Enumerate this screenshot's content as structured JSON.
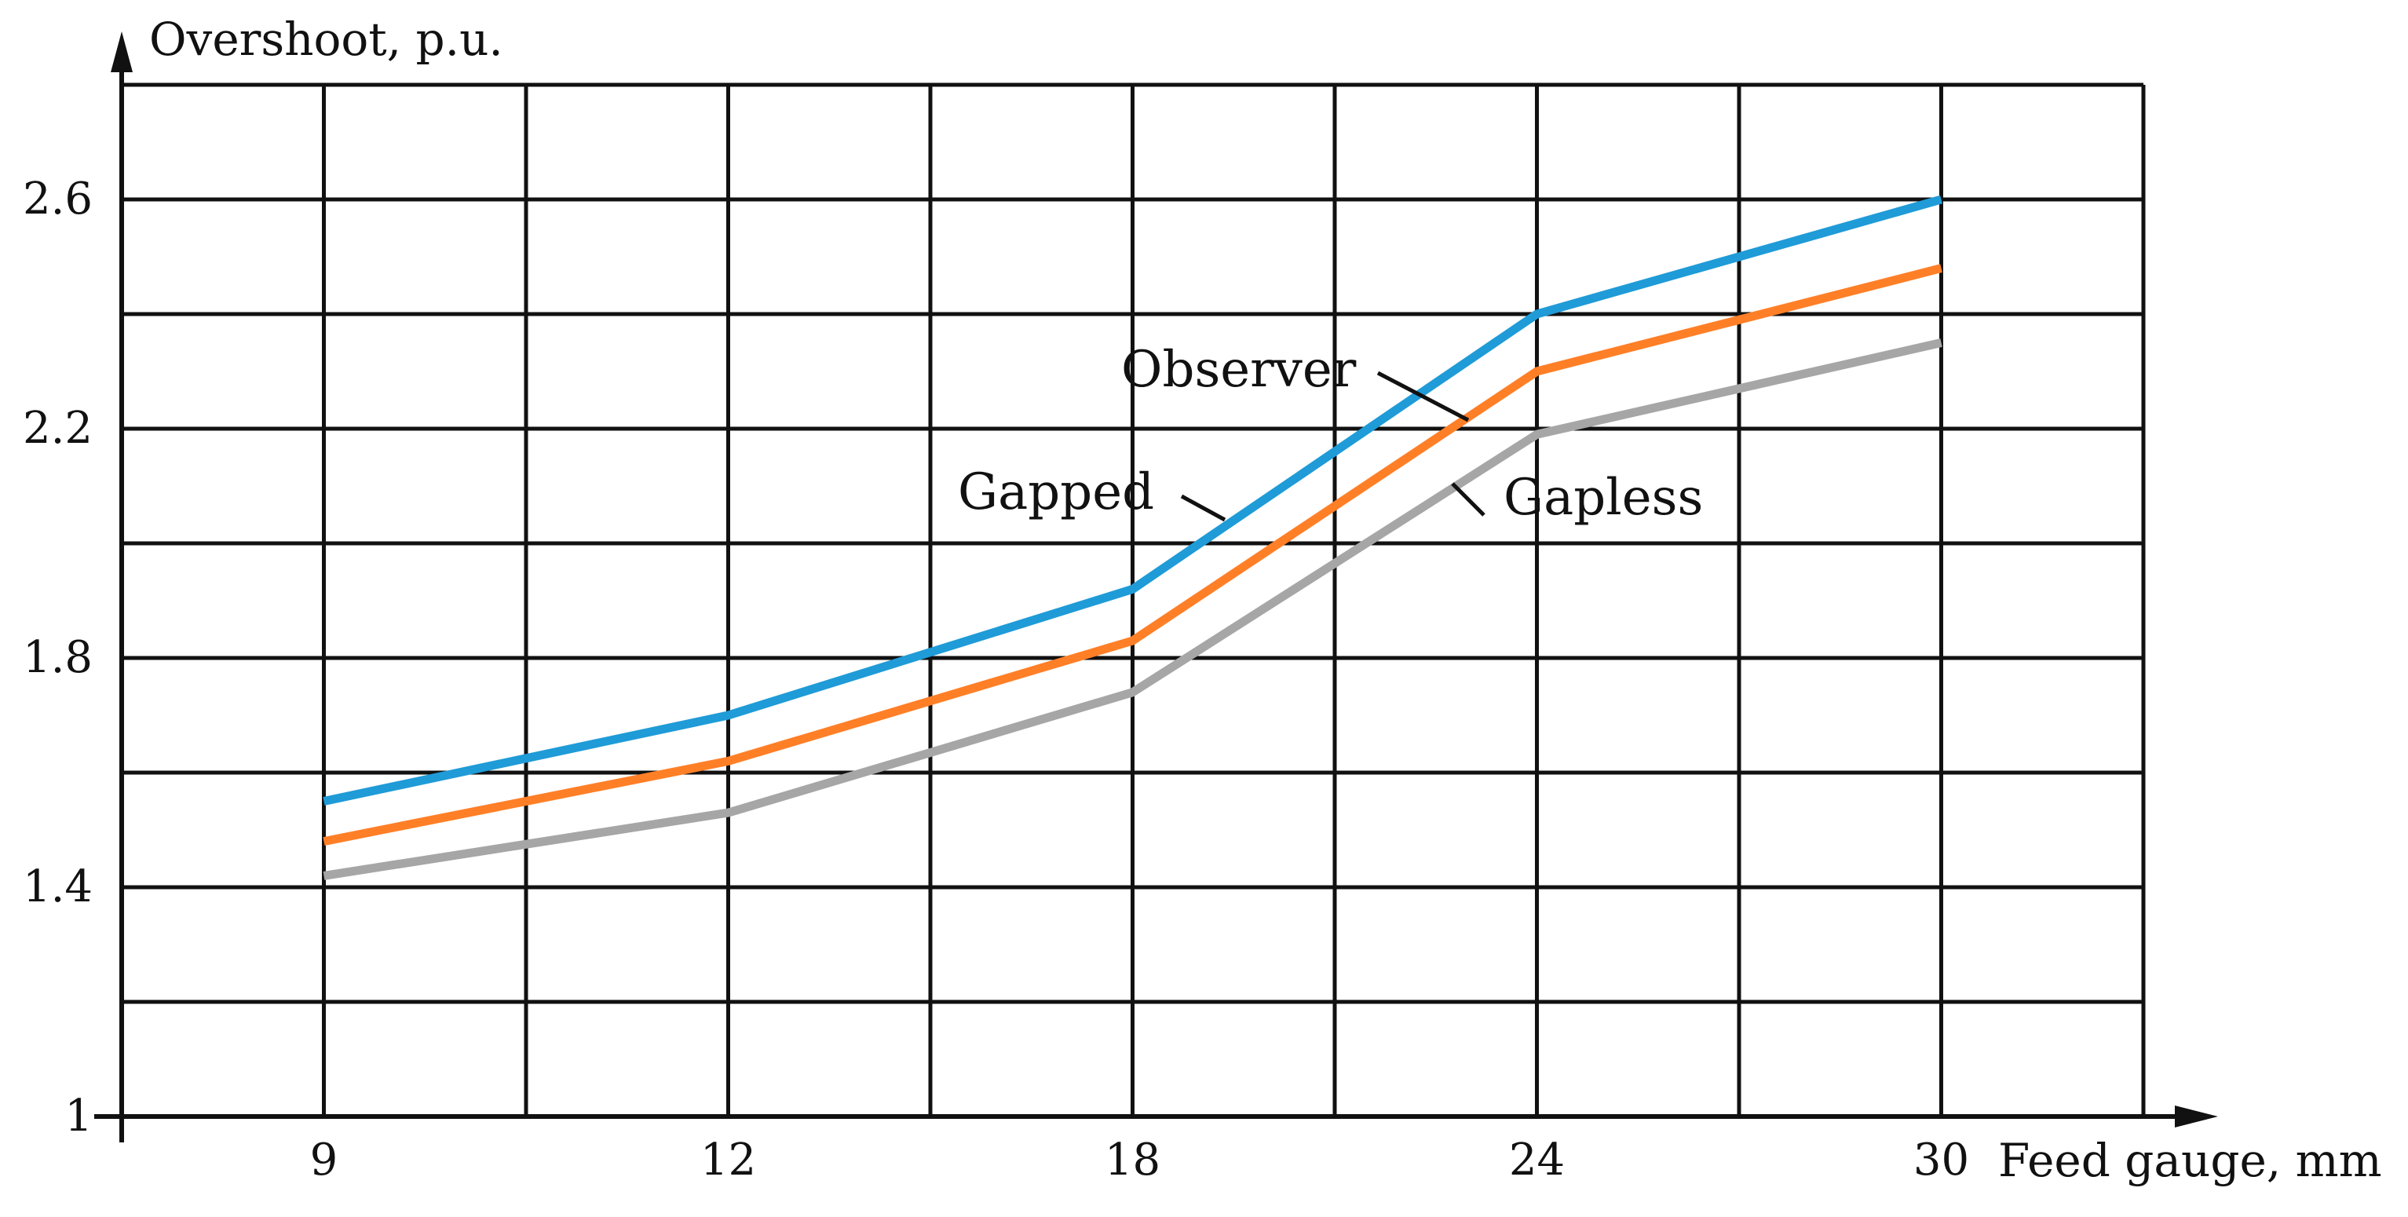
{
  "chart_data": {
    "type": "line",
    "title": "",
    "xlabel": "Feed gauge, mm",
    "ylabel": "Overshoot, p.u.",
    "x_ticks": [
      "9",
      "12",
      "18",
      "24",
      "30"
    ],
    "y_ticks": [
      "1",
      "1.4",
      "1.8",
      "2.2",
      "2.6"
    ],
    "y_tick_values": [
      1,
      1.4,
      1.8,
      2.2,
      2.6
    ],
    "ylim": [
      1,
      2.8
    ],
    "grid": true,
    "legend": "inline labels with leader lines",
    "series": [
      {
        "name": "Observer",
        "color": "#1f9bd7",
        "values": [
          1.55,
          1.7,
          1.92,
          2.4,
          2.6
        ]
      },
      {
        "name": "Gapped",
        "color": "#ff7f27",
        "values": [
          1.48,
          1.62,
          1.83,
          2.3,
          2.48
        ]
      },
      {
        "name": "Gapless",
        "color": "#a6a6a6",
        "values": [
          1.42,
          1.53,
          1.74,
          2.19,
          2.35
        ]
      }
    ]
  }
}
